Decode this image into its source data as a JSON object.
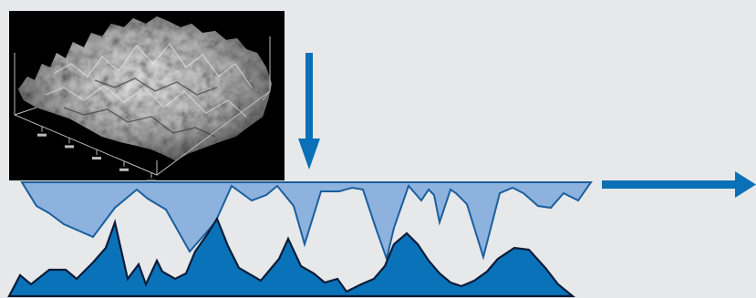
{
  "colors": {
    "background": "#e7e8ea",
    "surface_inset": "#000000",
    "arrow_blue": "#0a70b8",
    "top_profile_fill": "#8db2de",
    "top_profile_stroke": "#1a5f9e",
    "bottom_profile_fill": "#0a72b8",
    "bottom_profile_stroke": "#0a1c38",
    "terrain_light": "#d8d8d8",
    "terrain_dark": "#6e6e6e"
  },
  "inset": {
    "icon": "3d-surface-topography-scan-icon",
    "axis_tick_count": 5
  },
  "arrows": {
    "down": {
      "icon": "arrow-down-icon"
    },
    "right": {
      "icon": "arrow-right-icon"
    }
  },
  "profiles": {
    "top": {
      "icon": "inverted-roughness-profile-icon"
    },
    "bottom": {
      "icon": "roughness-profile-icon"
    }
  }
}
